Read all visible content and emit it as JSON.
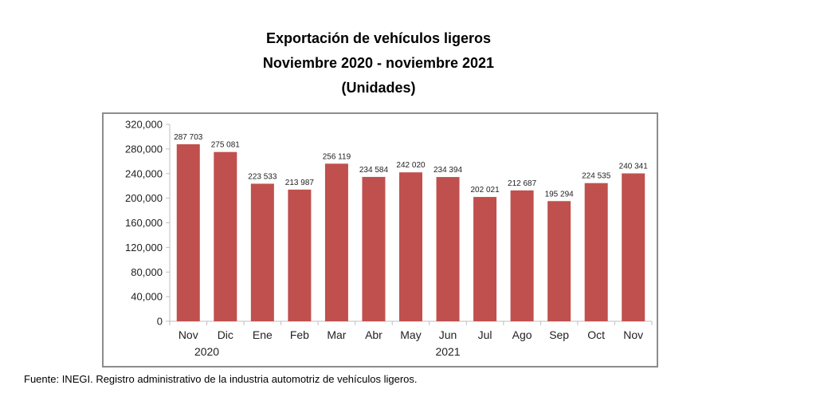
{
  "title_lines": [
    "Exportación de vehículos ligeros",
    "Noviembre 2020 - noviembre 2021",
    "(Unidades)"
  ],
  "source": "Fuente: INEGI. Registro administrativo de la industria automotriz de vehículos ligeros.",
  "colors": {
    "bar": "#c0504d",
    "axis": "#bfbfbf",
    "frame": "#8c8c8c"
  },
  "chart_data": {
    "type": "bar",
    "categories": [
      "Nov",
      "Dic",
      "Ene",
      "Feb",
      "Mar",
      "Abr",
      "May",
      "Jun",
      "Jul",
      "Ago",
      "Sep",
      "Oct",
      "Nov"
    ],
    "year_labels": [
      {
        "label": "2020",
        "categories": [
          "Nov",
          "Dic"
        ]
      },
      {
        "label": "2021",
        "categories": [
          "Ene",
          "Feb",
          "Mar",
          "Abr",
          "May",
          "Jun",
          "Jul",
          "Ago",
          "Sep",
          "Oct",
          "Nov"
        ]
      }
    ],
    "values": [
      287703,
      275081,
      223533,
      213987,
      256119,
      234584,
      242020,
      234394,
      202021,
      212687,
      195294,
      224535,
      240341
    ],
    "data_labels": [
      "287 703",
      "275 081",
      "223 533",
      "213 987",
      "256 119",
      "234 584",
      "242 020",
      "234 394",
      "202 021",
      "212 687",
      "195 294",
      "224 535",
      "240 341"
    ],
    "y_ticks": [
      0,
      40000,
      80000,
      120000,
      160000,
      200000,
      240000,
      280000,
      320000
    ],
    "y_tick_labels": [
      "0",
      "40,000",
      "80,000",
      "120,000",
      "160,000",
      "200,000",
      "240,000",
      "280,000",
      "320,000"
    ],
    "ylim": [
      0,
      320000
    ],
    "grid": false,
    "legend": "none",
    "xlabel": "",
    "ylabel": ""
  }
}
